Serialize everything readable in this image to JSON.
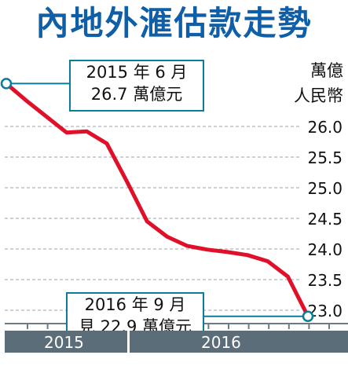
{
  "chart_data": {
    "type": "line",
    "title": "內地外滙估款走勢",
    "unit_label_lines": [
      "萬億",
      "人民幣"
    ],
    "yticks": [
      "26.0",
      "25.5",
      "25.0",
      "24.5",
      "24.0",
      "23.5",
      "23.0"
    ],
    "ylim": [
      22.6,
      26.7
    ],
    "xgroups": [
      "2015",
      "2016"
    ],
    "x": [
      "2015-06",
      "2015-07",
      "2015-08",
      "2015-09",
      "2015-10",
      "2015-11",
      "2015-12",
      "2016-01",
      "2016-02",
      "2016-03",
      "2016-04",
      "2016-05",
      "2016-06",
      "2016-07",
      "2016-08",
      "2016-09"
    ],
    "values": [
      26.7,
      26.42,
      26.16,
      25.9,
      25.92,
      25.72,
      25.1,
      24.45,
      24.2,
      24.05,
      23.99,
      23.95,
      23.9,
      23.8,
      23.55,
      22.9
    ],
    "line_color": "#e0102a",
    "grid": true,
    "annotations": [
      {
        "lines": [
          "2015 年 6 月",
          "26.7 萬億元"
        ]
      },
      {
        "lines": [
          "2016 年 9 月",
          "見 22.9 萬億元"
        ]
      }
    ]
  }
}
